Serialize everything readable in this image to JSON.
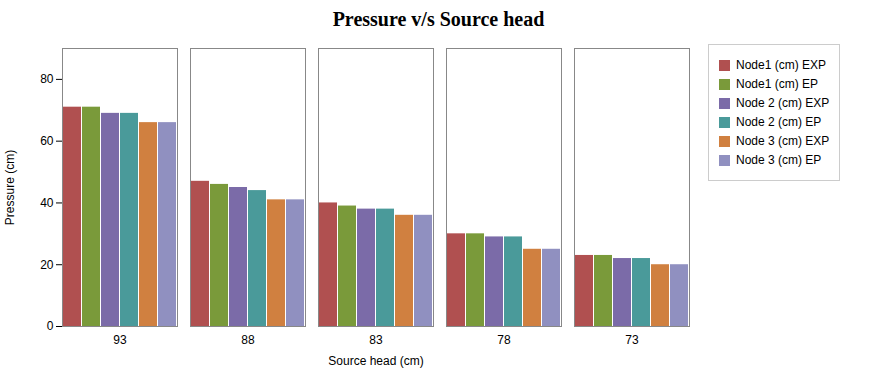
{
  "chart_data": {
    "type": "bar",
    "title": "Pressure v/s Source head",
    "xlabel": "Source head (cm)",
    "ylabel": "Pressure (cm)",
    "categories": [
      93,
      88,
      83,
      78,
      73
    ],
    "series": [
      {
        "name": "Node1 (cm) EXP",
        "color": "#B05050",
        "values": [
          71,
          47,
          40,
          30,
          23
        ]
      },
      {
        "name": "Node1 (cm) EP",
        "color": "#7A9A3A",
        "values": [
          71,
          46,
          39,
          30,
          23
        ]
      },
      {
        "name": "Node 2 (cm) EXP",
        "color": "#7B6BA8",
        "values": [
          69,
          45,
          38,
          29,
          22
        ]
      },
      {
        "name": "Node 2 (cm) EP",
        "color": "#4A9A9A",
        "values": [
          69,
          44,
          38,
          29,
          22
        ]
      },
      {
        "name": "Node 3 (cm) EXP",
        "color": "#D08040",
        "values": [
          66,
          41,
          36,
          25,
          20
        ]
      },
      {
        "name": "Node 3 (cm) EP",
        "color": "#9090C0",
        "values": [
          66,
          41,
          36,
          25,
          20
        ]
      }
    ],
    "ylim": [
      0,
      90
    ],
    "yticks": [
      0,
      20,
      40,
      60,
      80
    ],
    "grid": false,
    "legend": "right"
  }
}
